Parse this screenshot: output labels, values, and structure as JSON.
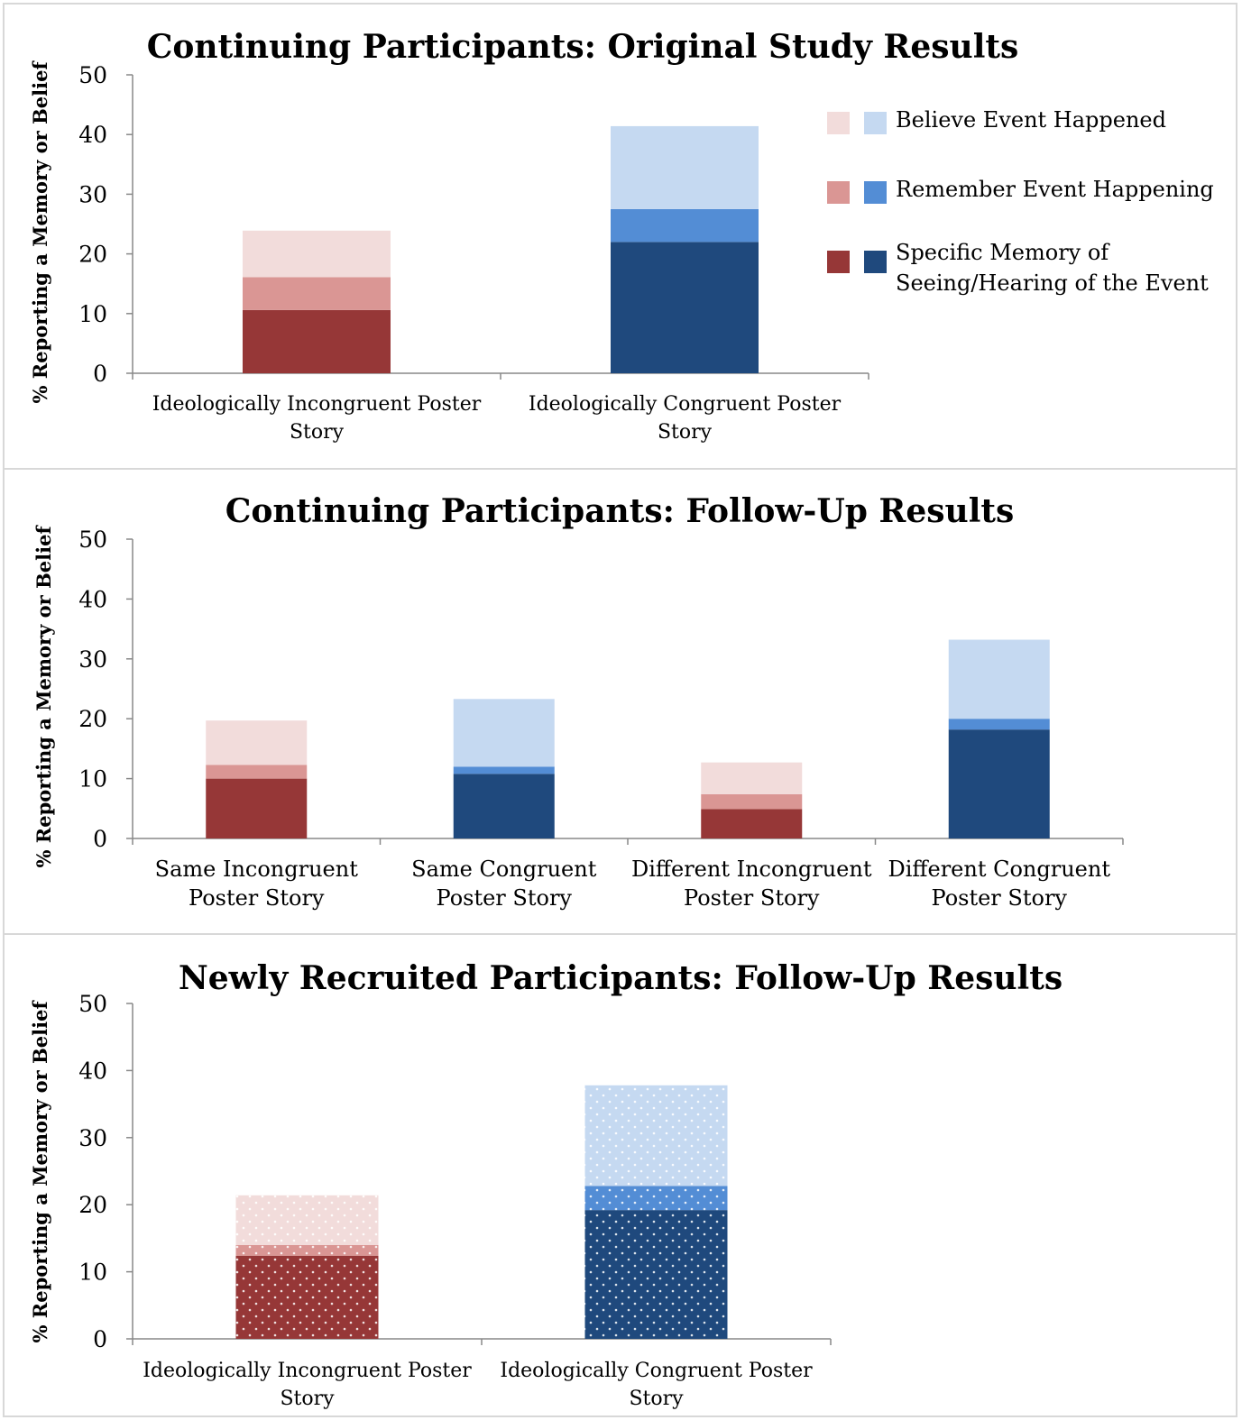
{
  "colors": {
    "incongruent": [
      "#963737",
      "#da9694",
      "#f2dcdb"
    ],
    "congruent": [
      "#1f497d",
      "#538dd5",
      "#c5d9f1"
    ]
  },
  "legend": [
    {
      "label": "Believe Event Happened",
      "level": 2
    },
    {
      "label": "Remember Event Happening",
      "level": 1
    },
    {
      "label": "Specific Memory of Seeing/Hearing of the Event",
      "lines": [
        "Specific Memory of",
        "Seeing/Hearing of the Event"
      ],
      "level": 0
    }
  ],
  "chart_data": [
    {
      "type": "bar",
      "stacked": true,
      "title": "Continuing Participants: Original Study Results",
      "ylabel": "% Reporting a Memory or Belief",
      "ylim": [
        0,
        50
      ],
      "yticks": [
        0,
        10,
        20,
        30,
        40,
        50
      ],
      "categories": [
        {
          "label": "Ideologically Incongruent Poster Story",
          "lines": [
            "Ideologically Incongruent Poster",
            "Story"
          ],
          "palette": "incongruent"
        },
        {
          "label": "Ideologically Congruent Poster Story",
          "lines": [
            "Ideologically Congruent Poster",
            "Story"
          ],
          "palette": "congruent"
        }
      ],
      "series": [
        {
          "name": "Specific Memory of Seeing/Hearing of the Event",
          "values": [
            10.6,
            22.0
          ]
        },
        {
          "name": "Remember Event Happening",
          "values": [
            5.5,
            5.5
          ]
        },
        {
          "name": "Believe Event Happened",
          "values": [
            7.8,
            13.9
          ]
        }
      ],
      "dotted": false,
      "legend": "right"
    },
    {
      "type": "bar",
      "stacked": true,
      "title": "Continuing Participants: Follow-Up Results",
      "ylabel": "% Reporting a Memory or Belief",
      "ylim": [
        0,
        50
      ],
      "yticks": [
        0,
        10,
        20,
        30,
        40,
        50
      ],
      "categories": [
        {
          "label": "Same Incongruent Poster Story",
          "lines": [
            "Same Incongruent",
            "Poster Story"
          ],
          "palette": "incongruent"
        },
        {
          "label": "Same Congruent Poster Story",
          "lines": [
            "Same Congruent",
            "Poster Story"
          ],
          "palette": "congruent"
        },
        {
          "label": "Different Incongruent Poster Story",
          "lines": [
            "Different Incongruent",
            "Poster Story"
          ],
          "palette": "incongruent"
        },
        {
          "label": "Different Congruent Poster Story",
          "lines": [
            "Different Congruent",
            "Poster Story"
          ],
          "palette": "congruent"
        }
      ],
      "series": [
        {
          "name": "Specific Memory of Seeing/Hearing of the Event",
          "values": [
            10.0,
            10.8,
            4.9,
            18.2
          ]
        },
        {
          "name": "Remember Event Happening",
          "values": [
            2.3,
            1.2,
            2.5,
            1.8
          ]
        },
        {
          "name": "Believe Event Happened",
          "values": [
            7.4,
            11.3,
            5.3,
            13.2
          ]
        }
      ],
      "dotted": false
    },
    {
      "type": "bar",
      "stacked": true,
      "title": "Newly Recruited Participants: Follow-Up Results",
      "ylabel": "% Reporting a Memory or Belief",
      "ylim": [
        0,
        50
      ],
      "yticks": [
        0,
        10,
        20,
        30,
        40,
        50
      ],
      "categories": [
        {
          "label": "Ideologically Incongruent Poster Story",
          "lines": [
            "Ideologically Incongruent Poster",
            "Story"
          ],
          "palette": "incongruent"
        },
        {
          "label": "Ideologically Congruent Poster Story",
          "lines": [
            "Ideologically Congruent Poster",
            "Story"
          ],
          "palette": "congruent"
        }
      ],
      "series": [
        {
          "name": "Specific Memory of Seeing/Hearing of the Event",
          "values": [
            12.4,
            19.2
          ]
        },
        {
          "name": "Remember Event Happening",
          "values": [
            1.6,
            3.6
          ]
        },
        {
          "name": "Believe Event Happened",
          "values": [
            7.4,
            15.0
          ]
        }
      ],
      "dotted": true
    }
  ]
}
